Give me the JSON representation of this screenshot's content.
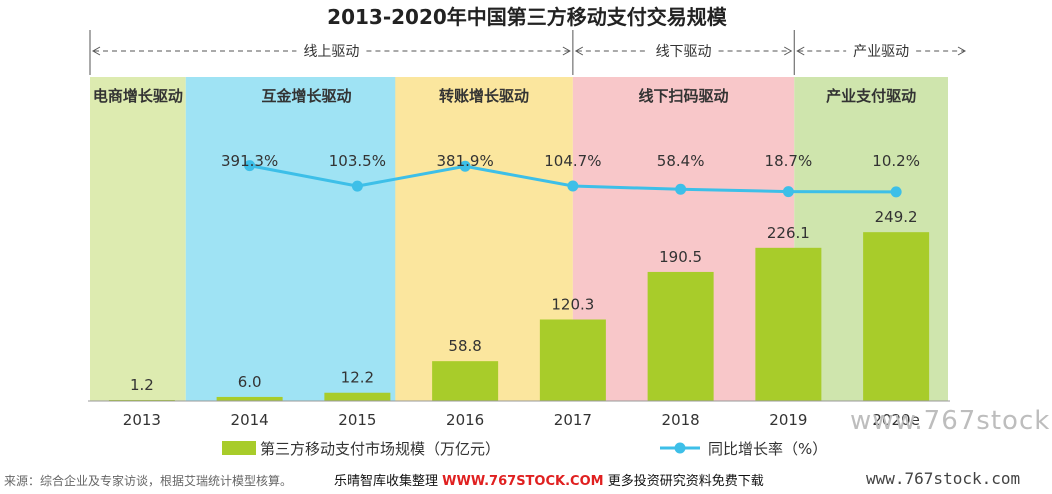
{
  "chart_data": {
    "type": "bar",
    "title": "2013-2020年中国第三方移动支付交易规模",
    "categories": [
      "2013",
      "2014",
      "2015",
      "2016",
      "2017",
      "2018",
      "2019",
      "2020e"
    ],
    "series": [
      {
        "name": "第三方移动支付市场规模（万亿元）",
        "type": "bar",
        "values": [
          1.2,
          6.0,
          12.2,
          58.8,
          120.3,
          190.5,
          226.1,
          249.2
        ],
        "labels": [
          "1.2",
          "6.0",
          "12.2",
          "58.8",
          "120.3",
          "190.5",
          "226.1",
          "249.2"
        ],
        "color": "#a8cc2a"
      },
      {
        "name": "同比增长率（%）",
        "type": "line",
        "values": [
          null,
          391.3,
          103.5,
          381.9,
          104.7,
          58.4,
          18.7,
          10.2
        ],
        "labels": [
          "",
          "391.3%",
          "103.5%",
          "381.9%",
          "104.7%",
          "58.4%",
          "18.7%",
          "10.2%"
        ],
        "color": "#3dbfe8"
      }
    ],
    "bands": [
      {
        "label": "电商增长驱动",
        "from": "2013",
        "to": "2013",
        "color": "#ddebb0"
      },
      {
        "label": "互金增长驱动",
        "from": "2014",
        "to": "2015",
        "color": "#9fe3f4"
      },
      {
        "label": "转账增长驱动",
        "from": "2016",
        "to": "2017",
        "color": "#fbe69e"
      },
      {
        "label": "线下扫码驱动",
        "from": "2017",
        "to": "2019",
        "color": "#f8c7c9"
      },
      {
        "label": "产业支付驱动",
        "from": "2020e",
        "to": "2020e",
        "color": "#cfe5ad"
      }
    ],
    "phases": [
      {
        "label": "线上驱动",
        "from": "2013",
        "to": "2017"
      },
      {
        "label": "线下驱动",
        "from": "2017",
        "to": "2019"
      },
      {
        "label": "产业驱动",
        "from": "2020e",
        "to": "2020e"
      }
    ],
    "ylim_bar": [
      0,
      400
    ],
    "ylim_line": [
      0,
      1000
    ],
    "legend_position": "bottom"
  },
  "footer": {
    "source": "来源：综合企业及专家访谈，根据艾瑞统计模型核算。",
    "promo_prefix": "乐晴智库收集整理",
    "promo_site": "WWW.767STOCK.COM",
    "promo_suffix": "更多投资研究资料免费下载",
    "watermark_bottom": "www.767stock.com",
    "watermark_mid": "www.767stock"
  }
}
